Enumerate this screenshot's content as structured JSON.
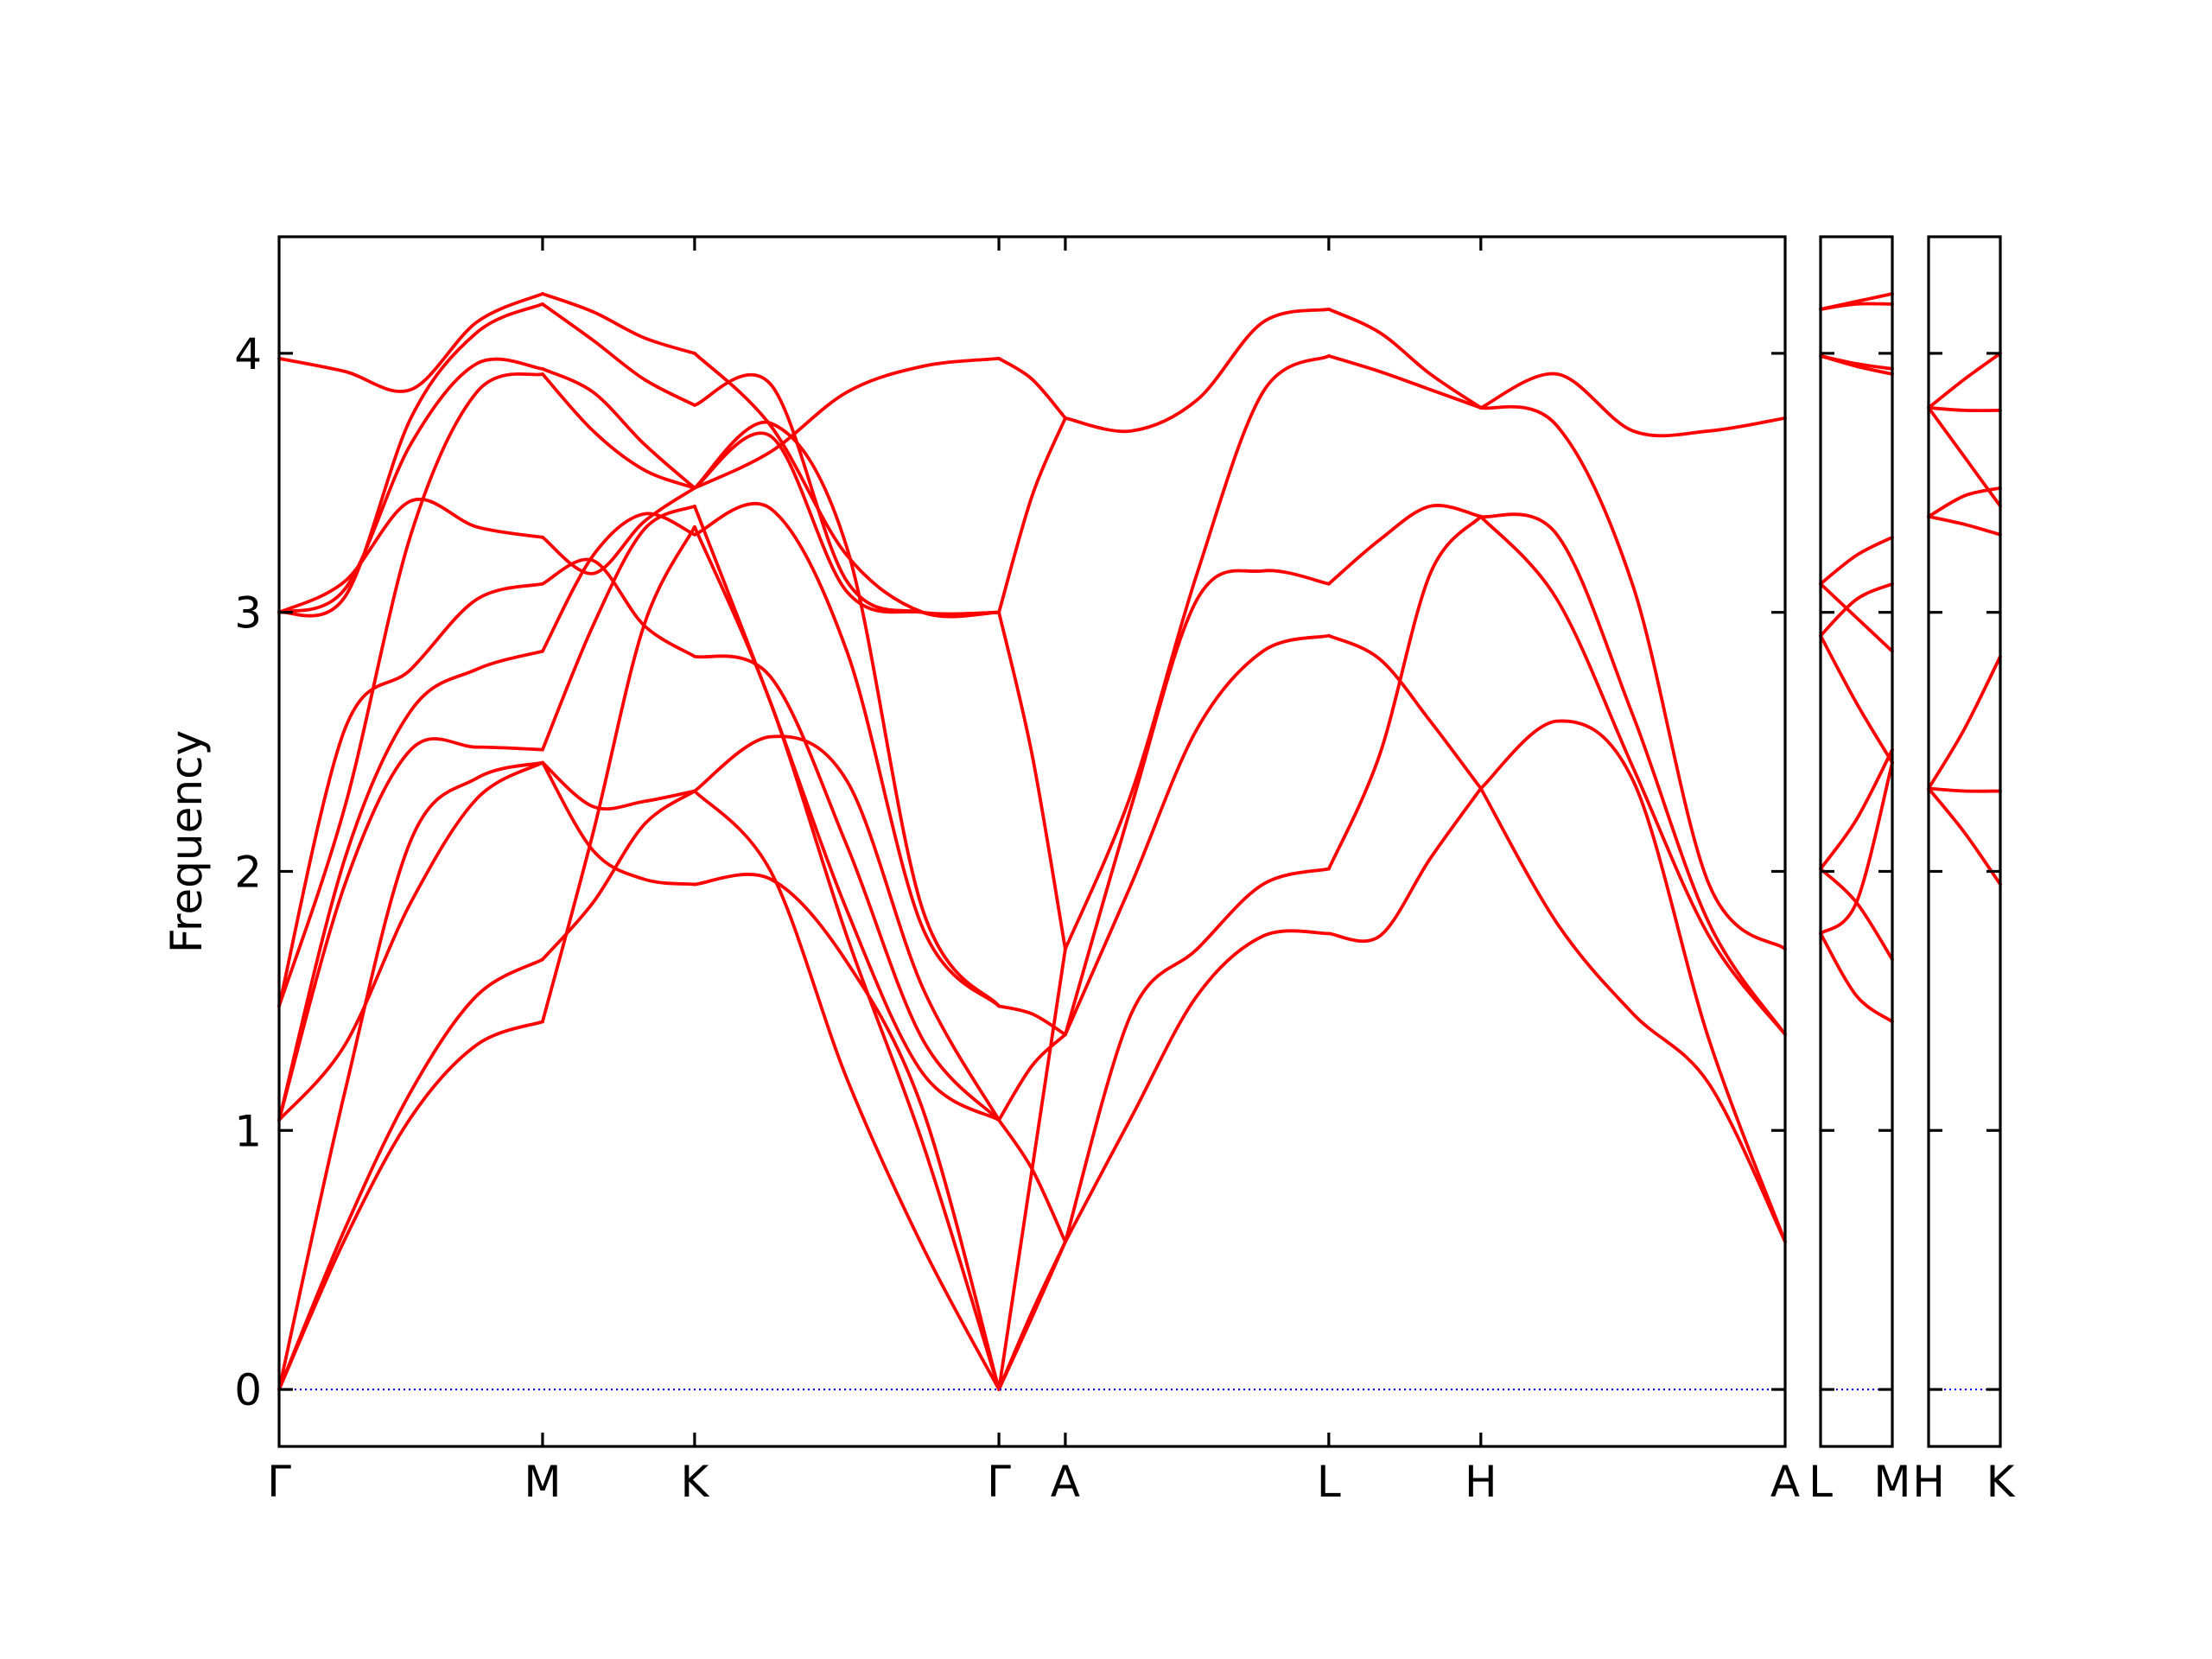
{
  "chart_data": {
    "type": "line",
    "title": "",
    "xlabel": "",
    "ylabel": "Frequency",
    "ylim": [
      -0.22,
      4.45
    ],
    "yticks": [
      0,
      1,
      2,
      3,
      4
    ],
    "grid": false,
    "legend": "none",
    "series_color": "#ff0000",
    "zero_line_color": "#0000ff",
    "x_tick_labels": [
      "Γ",
      "M",
      "K",
      "Γ",
      "A",
      "L",
      "H",
      "A",
      "L",
      "M",
      "H",
      "K"
    ],
    "panels": [
      {
        "path": [
          "Γ",
          "M",
          "K",
          "Γ",
          "A",
          "L",
          "H",
          "A"
        ],
        "kpoints": [
          0,
          1.0,
          1.577,
          2.732,
          2.984,
          3.984,
          4.561,
          5.716
        ],
        "x_range": [
          0,
          5.716
        ],
        "segments": [
          {
            "from": "Γ",
            "to": "M",
            "x": [
              0,
              0.25,
              0.5,
              0.75,
              1.0
            ],
            "bands": [
              [
                0.0,
                0.58,
                1.05,
                1.33,
                1.42
              ],
              [
                0.0,
                0.62,
                1.15,
                1.52,
                1.66
              ],
              [
                0.0,
                1.15,
                2.12,
                2.36,
                2.42
              ],
              [
                1.04,
                1.33,
                1.88,
                2.28,
                2.42
              ],
              [
                1.04,
                1.95,
                2.47,
                2.48,
                2.47
              ],
              [
                1.04,
                2.05,
                2.62,
                2.78,
                2.85
              ],
              [
                1.48,
                2.55,
                2.78,
                3.05,
                3.11
              ],
              [
                1.48,
                2.25,
                3.3,
                3.85,
                3.92
              ],
              [
                3.0,
                3.12,
                3.43,
                3.33,
                3.29
              ],
              [
                3.0,
                3.09,
                3.65,
                3.96,
                3.94
              ],
              [
                3.98,
                3.93,
                3.86,
                4.12,
                4.23
              ],
              [
                3.0,
                3.06,
                3.75,
                4.08,
                4.19
              ]
            ]
          },
          {
            "from": "M",
            "to": "K",
            "x": [
              1.0,
              1.192,
              1.385,
              1.577
            ],
            "bands": [
              [
                1.42,
                2.15,
                2.95,
                3.33
              ],
              [
                1.66,
                1.88,
                2.18,
                2.31
              ],
              [
                2.42,
                2.25,
                2.27,
                2.31
              ],
              [
                2.42,
                2.08,
                1.97,
                1.95
              ],
              [
                2.47,
                2.95,
                3.32,
                3.41
              ],
              [
                2.85,
                3.22,
                3.38,
                3.3
              ],
              [
                3.11,
                3.2,
                2.95,
                2.83
              ],
              [
                3.92,
                3.7,
                3.55,
                3.48
              ],
              [
                3.29,
                3.15,
                3.35,
                3.48
              ],
              [
                3.94,
                3.85,
                3.65,
                3.48
              ],
              [
                4.23,
                4.16,
                4.06,
                4.0
              ],
              [
                4.19,
                4.05,
                3.9,
                3.8
              ]
            ]
          },
          {
            "from": "K",
            "to": "Γ",
            "x": [
              1.577,
              1.866,
              2.155,
              2.443,
              2.732
            ],
            "bands": [
              [
                1.95,
                1.97,
                1.65,
                1.08,
                0.0
              ],
              [
                2.31,
                2.0,
                1.2,
                0.55,
                0.0
              ],
              [
                2.31,
                2.52,
                2.35,
                1.55,
                1.04
              ],
              [
                3.33,
                2.65,
                1.75,
                0.95,
                0.0
              ],
              [
                3.41,
                2.65,
                1.85,
                1.22,
                1.04
              ],
              [
                2.83,
                2.75,
                2.1,
                1.35,
                1.04
              ],
              [
                3.3,
                3.4,
                2.85,
                1.78,
                1.48
              ],
              [
                3.48,
                3.73,
                3.25,
                1.85,
                1.48
              ],
              [
                3.48,
                3.68,
                3.08,
                3.0,
                3.0
              ],
              [
                3.8,
                3.88,
                3.12,
                3.0,
                3.0
              ],
              [
                4.0,
                3.72,
                3.22,
                3.0,
                3.0
              ],
              [
                3.48,
                3.62,
                3.85,
                3.95,
                3.98
              ]
            ]
          },
          {
            "from": "Γ",
            "to": "A",
            "x": [
              2.732,
              2.858,
              2.984
            ],
            "bands": [
              [
                0.0,
                0.28,
                0.57
              ],
              [
                0.0,
                0.3,
                0.57
              ],
              [
                0.0,
                0.85,
                1.7
              ],
              [
                1.04,
                0.85,
                0.57
              ],
              [
                1.04,
                1.25,
                1.37
              ],
              [
                1.48,
                1.45,
                1.37
              ],
              [
                3.0,
                2.45,
                1.7
              ],
              [
                3.0,
                3.45,
                3.75
              ],
              [
                3.98,
                3.9,
                3.75
              ]
            ]
          },
          {
            "from": "A",
            "to": "L",
            "x": [
              2.984,
              3.234,
              3.484,
              3.734,
              3.984
            ],
            "bands": [
              [
                0.57,
                1.05,
                1.52,
                1.75,
                1.76
              ],
              [
                0.57,
                1.45,
                1.7,
                1.95,
                2.01
              ],
              [
                1.37,
                1.95,
                2.55,
                2.85,
                2.91
              ],
              [
                1.37,
                2.25,
                3.05,
                3.16,
                3.11
              ],
              [
                1.7,
                2.3,
                3.15,
                3.85,
                3.99
              ],
              [
                3.75,
                3.7,
                3.82,
                4.12,
                4.17
              ]
            ]
          },
          {
            "from": "L",
            "to": "H",
            "x": [
              3.984,
              4.177,
              4.369,
              4.561
            ],
            "bands": [
              [
                1.76,
                1.75,
                2.05,
                2.32
              ],
              [
                2.01,
                2.45,
                3.15,
                3.37
              ],
              [
                2.91,
                2.82,
                2.58,
                2.32
              ],
              [
                3.11,
                3.28,
                3.41,
                3.37
              ],
              [
                3.99,
                3.93,
                3.86,
                3.79
              ],
              [
                4.17,
                4.08,
                3.92,
                3.79
              ]
            ]
          },
          {
            "from": "H",
            "to": "A",
            "x": [
              4.561,
              4.85,
              5.139,
              5.427,
              5.716
            ],
            "bands": [
              [
                2.32,
                1.8,
                1.45,
                1.18,
                0.57
              ],
              [
                2.32,
                2.58,
                2.35,
                1.35,
                0.57
              ],
              [
                3.37,
                3.05,
                2.4,
                1.75,
                1.37
              ],
              [
                3.37,
                3.3,
                2.6,
                1.8,
                1.37
              ],
              [
                3.79,
                3.72,
                3.1,
                1.95,
                1.7
              ],
              [
                3.79,
                3.92,
                3.7,
                3.7,
                3.75
              ]
            ]
          }
        ]
      },
      {
        "path": [
          "L",
          "M"
        ],
        "kpoints": [
          0,
          0.5
        ],
        "x_range": [
          0,
          0.5
        ],
        "segments": [
          {
            "from": "L",
            "to": "M",
            "x": [
              0,
              0.25,
              0.5
            ],
            "bands": [
              [
                1.76,
                1.52,
                1.42
              ],
              [
                1.76,
                1.88,
                2.42
              ],
              [
                2.01,
                1.88,
                1.66
              ],
              [
                2.01,
                2.2,
                2.47
              ],
              [
                2.91,
                2.65,
                2.42
              ],
              [
                2.91,
                3.05,
                3.11
              ],
              [
                3.11,
                2.98,
                2.85
              ],
              [
                3.11,
                3.22,
                3.29
              ],
              [
                3.99,
                3.95,
                3.92
              ],
              [
                3.99,
                3.96,
                3.94
              ],
              [
                4.17,
                4.2,
                4.23
              ],
              [
                4.17,
                4.19,
                4.19
              ]
            ]
          }
        ]
      },
      {
        "path": [
          "H",
          "K"
        ],
        "kpoints": [
          0,
          0.5
        ],
        "x_range": [
          0,
          0.5
        ],
        "segments": [
          {
            "from": "H",
            "to": "K",
            "x": [
              0,
              0.25,
              0.5
            ],
            "bands": [
              [
                2.32,
                2.15,
                1.95
              ],
              [
                2.32,
                2.31,
                2.31
              ],
              [
                2.32,
                2.55,
                2.83
              ],
              [
                3.37,
                3.45,
                3.48
              ],
              [
                3.37,
                3.34,
                3.3
              ],
              [
                3.79,
                3.78,
                3.78
              ],
              [
                3.79,
                3.6,
                3.41
              ],
              [
                3.79,
                3.9,
                4.0
              ]
            ]
          }
        ]
      }
    ]
  }
}
